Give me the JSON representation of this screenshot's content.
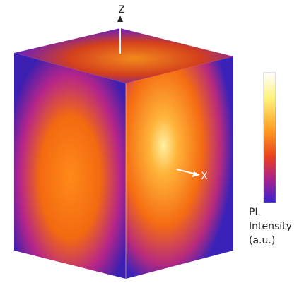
{
  "axes": {
    "z_label": "Z",
    "x_label": "X"
  },
  "colorbar": {
    "label_lines": [
      "PL",
      "Intensity",
      "(a.u.)"
    ]
  }
}
